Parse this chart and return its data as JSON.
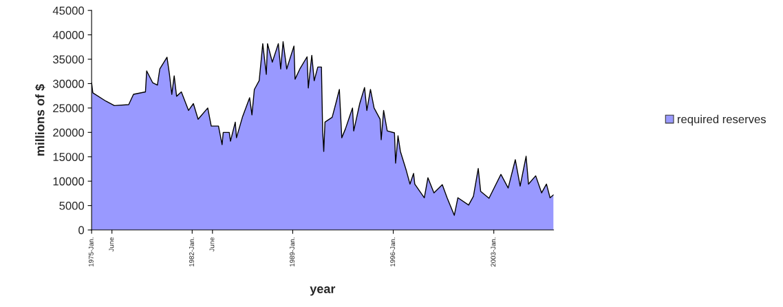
{
  "chart_data": {
    "type": "area",
    "xlabel": "year",
    "ylabel": "millions of $",
    "x": [
      "1975-01",
      "1975-02",
      "1976-01",
      "1976-08",
      "1977-08",
      "1977-12",
      "1978-10",
      "1978-11",
      "1979-04",
      "1979-08",
      "1979-10",
      "1980-04",
      "1980-06",
      "1980-08",
      "1980-10",
      "1980-12",
      "1981-04",
      "1981-10",
      "1982-02",
      "1982-06",
      "1983-02",
      "1983-05",
      "1983-11",
      "1984-02",
      "1984-03",
      "1984-08",
      "1984-09",
      "1985-01",
      "1985-02",
      "1985-07",
      "1986-01",
      "1986-03",
      "1986-05",
      "1986-09",
      "1986-12",
      "1987-03",
      "1987-04",
      "1987-08",
      "1988-01",
      "1988-03",
      "1988-05",
      "1988-08",
      "1989-02",
      "1989-03",
      "1989-07",
      "1990-01",
      "1990-02",
      "1990-05",
      "1990-07",
      "1990-10",
      "1991-01",
      "1991-02",
      "1991-03",
      "1991-04",
      "1991-10",
      "1992-01",
      "1992-04",
      "1992-06",
      "1992-09",
      "1993-03",
      "1993-04",
      "1993-09",
      "1994-01",
      "1994-03",
      "1994-06",
      "1994-09",
      "1995-02",
      "1995-03",
      "1995-05",
      "1995-08",
      "1996-02",
      "1996-03",
      "1996-05",
      "1996-07",
      "1996-10",
      "1996-12",
      "1997-03",
      "1997-06",
      "1997-07",
      "1998-03",
      "1998-06",
      "1998-11",
      "1999-06",
      "1999-10",
      "2000-04",
      "2000-07",
      "2001-04",
      "2001-08",
      "2001-12",
      "2002-02",
      "2002-09",
      "2003-07",
      "2004-01",
      "2004-07",
      "2004-11",
      "2005-04",
      "2005-06",
      "2005-12",
      "2006-05",
      "2006-09",
      "2006-12",
      "2007-03"
    ],
    "series": [
      {
        "name": "required reserves",
        "color": "#9999ff",
        "values": [
          30200,
          28100,
          26400,
          25500,
          25700,
          27800,
          28300,
          32600,
          30200,
          29700,
          33000,
          35400,
          32000,
          27800,
          31600,
          27400,
          28300,
          24500,
          25900,
          22700,
          25000,
          21300,
          21300,
          17500,
          20000,
          20000,
          18200,
          22100,
          18900,
          23100,
          27100,
          23600,
          28800,
          30600,
          38200,
          31900,
          38200,
          34400,
          38200,
          33000,
          38600,
          33000,
          37700,
          30900,
          33000,
          35500,
          29100,
          35800,
          30600,
          33400,
          33400,
          20300,
          16100,
          22100,
          23100,
          25900,
          28800,
          18900,
          20700,
          25000,
          20300,
          25900,
          29200,
          24500,
          28800,
          25000,
          22700,
          18500,
          24500,
          20300,
          19900,
          13700,
          19300,
          16100,
          13700,
          12100,
          9400,
          11600,
          9400,
          6600,
          10700,
          7600,
          9300,
          6600,
          3000,
          6600,
          5100,
          6900,
          12600,
          7900,
          6500,
          11400,
          8600,
          14400,
          9000,
          15100,
          9400,
          11100,
          7600,
          9400,
          6600,
          7200
        ]
      }
    ],
    "xlim": [
      "1975-01",
      "2007-03"
    ],
    "xticks": [
      {
        "value": "1975-01",
        "label": "1975-Jan."
      },
      {
        "value": "1976-06",
        "label": "June"
      },
      {
        "value": "1982-01",
        "label": "1982-Jan."
      },
      {
        "value": "1983-06",
        "label": "June"
      },
      {
        "value": "1989-01",
        "label": "1989-Jan."
      },
      {
        "value": "1996-01",
        "label": "1996-Jan."
      },
      {
        "value": "2003-01",
        "label": "2003-Jan."
      }
    ],
    "ylim": [
      0,
      45000
    ],
    "yticks": [
      0,
      5000,
      10000,
      15000,
      20000,
      25000,
      30000,
      35000,
      40000,
      45000
    ],
    "grid": false,
    "legend": "right",
    "line_style": "solid",
    "marker": "none"
  }
}
